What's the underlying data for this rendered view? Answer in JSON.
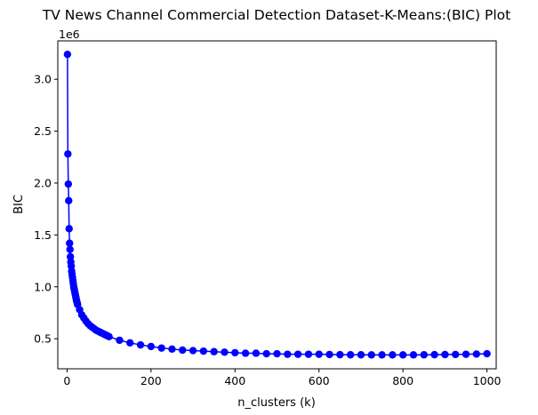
{
  "chart_data": {
    "type": "line",
    "title": "TV News Channel Commercial Detection Dataset-K-Means:(BIC) Plot",
    "xlabel": "n_clusters (k)",
    "ylabel": "BIC",
    "y_offset_label": "1e6",
    "xlim": [
      -22,
      1022
    ],
    "ylim": [
      0.21,
      3.37
    ],
    "y_scale_note": "values in units of 1e6",
    "xticks": [
      0,
      200,
      400,
      600,
      800,
      1000
    ],
    "xtick_labels": [
      "0",
      "200",
      "400",
      "600",
      "800",
      "1000"
    ],
    "yticks": [
      0.5,
      1.0,
      1.5,
      2.0,
      2.5,
      3.0
    ],
    "ytick_labels": [
      "0.5",
      "1.0",
      "1.5",
      "2.0",
      "2.5",
      "3.0"
    ],
    "grid": false,
    "legend": "none",
    "colors": {
      "series": "#0000ff",
      "axes": "#000000",
      "background": "#ffffff"
    },
    "series": [
      {
        "marker": "circle",
        "x": [
          1,
          2,
          3,
          4,
          5,
          6,
          7,
          8,
          9,
          10,
          11,
          12,
          13,
          14,
          15,
          16,
          17,
          18,
          19,
          20,
          21,
          22,
          23,
          24,
          25,
          30,
          35,
          40,
          45,
          50,
          55,
          60,
          65,
          70,
          75,
          80,
          85,
          90,
          95,
          100,
          125,
          150,
          175,
          200,
          225,
          250,
          275,
          300,
          325,
          350,
          375,
          400,
          425,
          450,
          475,
          500,
          525,
          550,
          575,
          600,
          625,
          650,
          675,
          700,
          725,
          750,
          775,
          800,
          825,
          850,
          875,
          900,
          925,
          950,
          975,
          1000
        ],
        "y": [
          3.24,
          2.28,
          1.99,
          1.83,
          1.56,
          1.42,
          1.36,
          1.29,
          1.24,
          1.2,
          1.15,
          1.12,
          1.09,
          1.06,
          1.03,
          1.0,
          0.98,
          0.96,
          0.94,
          0.92,
          0.9,
          0.88,
          0.86,
          0.85,
          0.83,
          0.78,
          0.73,
          0.7,
          0.67,
          0.645,
          0.625,
          0.61,
          0.595,
          0.58,
          0.57,
          0.56,
          0.55,
          0.54,
          0.53,
          0.52,
          0.485,
          0.46,
          0.44,
          0.425,
          0.41,
          0.4,
          0.39,
          0.385,
          0.38,
          0.375,
          0.37,
          0.365,
          0.36,
          0.36,
          0.355,
          0.355,
          0.35,
          0.35,
          0.35,
          0.35,
          0.348,
          0.346,
          0.345,
          0.345,
          0.344,
          0.344,
          0.344,
          0.344,
          0.344,
          0.345,
          0.346,
          0.347,
          0.348,
          0.35,
          0.352,
          0.355
        ]
      }
    ]
  }
}
